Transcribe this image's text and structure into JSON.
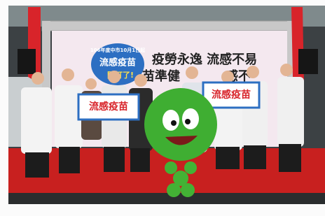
{
  "banner": {
    "badge": {
      "date": "106年度中市10月1日起",
      "title": "流感疫苗",
      "exclaim": "開打了!"
    },
    "slogan_line1": "疫勞永逸 流感不易",
    "slogan_line2_left": "苗準健",
    "slogan_line2_right": "感不"
  },
  "signs": [
    "流感疫苗",
    "流感疫苗"
  ]
}
